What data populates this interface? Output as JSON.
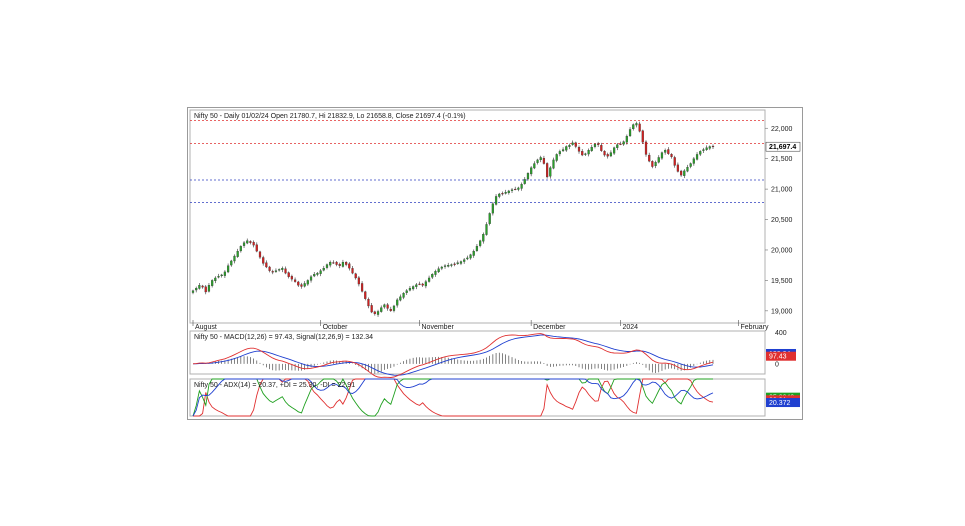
{
  "chart_data": [
    {
      "type": "candlestick",
      "title": "Nifty 50 - Daily 01/02/24 Open 21780.7, Hi 21832.9, Lo 21658.8, Close 21697.4 (-0.1%)",
      "ylim": [
        18800,
        22300
      ],
      "yticks": [
        19000,
        19500,
        20000,
        20500,
        21000,
        21500,
        22000
      ],
      "ytick_labels": [
        "19,000",
        "19,500",
        "20,000",
        "20,500",
        "21,000",
        "21,500",
        "22,000"
      ],
      "x_labels": [
        {
          "label": "August",
          "index": 0
        },
        {
          "label": "October",
          "index": 40
        },
        {
          "label": "November",
          "index": 71
        },
        {
          "label": "December",
          "index": 106
        },
        {
          "label": "2024",
          "index": 134
        },
        {
          "label": "February",
          "index": 171
        }
      ],
      "last_price_label": "21,697.4",
      "hlines": [
        {
          "value": 22130,
          "color": "#e03030"
        },
        {
          "value": 21750,
          "color": "#e03030"
        },
        {
          "value": 21150,
          "color": "#3040c0"
        },
        {
          "value": 20780,
          "color": "#3040c0"
        }
      ],
      "closes": [
        19330,
        19370,
        19420,
        19390,
        19310,
        19420,
        19500,
        19540,
        19570,
        19590,
        19640,
        19740,
        19820,
        19900,
        19980,
        20060,
        20120,
        20150,
        20120,
        20080,
        19980,
        19880,
        19780,
        19720,
        19660,
        19640,
        19660,
        19680,
        19700,
        19620,
        19560,
        19520,
        19480,
        19420,
        19400,
        19450,
        19500,
        19560,
        19600,
        19620,
        19660,
        19700,
        19760,
        19800,
        19790,
        19760,
        19740,
        19800,
        19760,
        19700,
        19620,
        19540,
        19440,
        19320,
        19200,
        19080,
        18980,
        18950,
        18990,
        19050,
        19100,
        19040,
        19000,
        19080,
        19180,
        19230,
        19290,
        19330,
        19370,
        19400,
        19430,
        19440,
        19420,
        19480,
        19540,
        19600,
        19650,
        19690,
        19720,
        19740,
        19750,
        19760,
        19770,
        19790,
        19810,
        19840,
        19870,
        19920,
        19980,
        20060,
        20150,
        20260,
        20420,
        20600,
        20760,
        20880,
        20920,
        20930,
        20950,
        20970,
        20990,
        21000,
        21020,
        21080,
        21160,
        21260,
        21350,
        21420,
        21480,
        21520,
        21420,
        21200,
        21350,
        21480,
        21570,
        21620,
        21650,
        21700,
        21720,
        21760,
        21700,
        21620,
        21560,
        21580,
        21640,
        21690,
        21740,
        21730,
        21630,
        21560,
        21540,
        21600,
        21680,
        21730,
        21740,
        21780,
        21870,
        21980,
        22060,
        22080,
        21950,
        21770,
        21570,
        21460,
        21370,
        21440,
        21520,
        21600,
        21640,
        21580,
        21530,
        21390,
        21290,
        21230,
        21300,
        21360,
        21420,
        21500,
        21570,
        21620,
        21650,
        21680,
        21700,
        21697
      ]
    },
    {
      "type": "line",
      "title": "Nifty 50 - MACD(12,26) = 97.43, Signal(12,26,9) = 132.34",
      "ylim": [
        -130,
        420
      ],
      "yticks": [
        0,
        400
      ],
      "ytick_labels": [
        "0",
        "400"
      ],
      "value_labels": [
        {
          "text": "132.34",
          "value": 132.34,
          "color": "#2040d0"
        },
        {
          "text": "97.43",
          "value": 97.43,
          "color": "#e03030"
        }
      ],
      "series": [
        {
          "name": "MACD",
          "color": "#e03030"
        },
        {
          "name": "Signal",
          "color": "#2040d0"
        }
      ]
    },
    {
      "type": "line",
      "title": "Nifty 50 - ADX(14) = 20.37, +DI = 25.30, -DI = 22.91",
      "ylim": [
        8,
        42
      ],
      "value_labels": [
        {
          "text": "25.3049",
          "value": 25.3049,
          "color": "#20a020"
        },
        {
          "text": "22.91",
          "value": 22.91,
          "color": "#e03030"
        },
        {
          "text": "20.372",
          "value": 20.372,
          "color": "#2040d0"
        }
      ],
      "series": [
        {
          "name": "ADX",
          "color": "#2040d0"
        },
        {
          "name": "+DI",
          "color": "#20a020"
        },
        {
          "name": "-DI",
          "color": "#e03030"
        }
      ]
    }
  ]
}
